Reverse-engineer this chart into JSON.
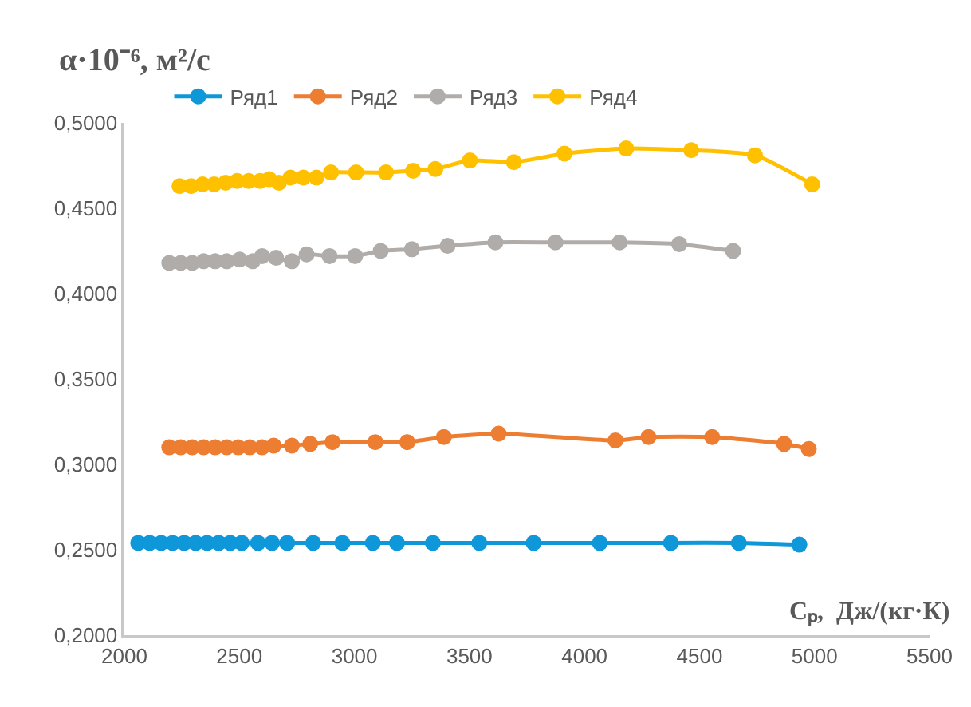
{
  "chart_data": {
    "type": "line",
    "ylabel": "α·10⁻⁶, м²/c",
    "xlabel": "Cₚ,  Дж/(кг·К)",
    "xlim": [
      2000,
      5500
    ],
    "xticks": [
      2000,
      2500,
      3000,
      3500,
      4000,
      4500,
      5000,
      5500
    ],
    "ylim": [
      0.2,
      0.5
    ],
    "yticks": [
      {
        "value": 0.2,
        "label": "0,2000"
      },
      {
        "value": 0.25,
        "label": "0,2500"
      },
      {
        "value": 0.3,
        "label": "0,3000"
      },
      {
        "value": 0.35,
        "label": "0,3500"
      },
      {
        "value": 0.4,
        "label": "0,4000"
      },
      {
        "value": 0.45,
        "label": "0,4500"
      },
      {
        "value": 0.5,
        "label": "0,5000"
      }
    ],
    "legend": "top",
    "marker": "circle",
    "line_style": "solid",
    "series": [
      {
        "name": "Ряд1",
        "color": "#0e97d9",
        "x": [
          2060,
          2110,
          2160,
          2210,
          2260,
          2310,
          2360,
          2410,
          2460,
          2510,
          2581,
          2642,
          2708,
          2821,
          2948,
          3080,
          3185,
          3341,
          3543,
          3779,
          4067,
          4376,
          4671,
          4934
        ],
        "values": [
          0.254,
          0.254,
          0.254,
          0.254,
          0.254,
          0.254,
          0.254,
          0.254,
          0.254,
          0.254,
          0.254,
          0.254,
          0.254,
          0.254,
          0.254,
          0.254,
          0.254,
          0.254,
          0.254,
          0.254,
          0.254,
          0.254,
          0.254,
          0.253
        ]
      },
      {
        "name": "Ряд2",
        "color": "#ed7d31",
        "x": [
          2195,
          2245,
          2295,
          2345,
          2395,
          2445,
          2495,
          2545,
          2599,
          2649,
          2728,
          2808,
          2905,
          3091,
          3230,
          3389,
          3627,
          4135,
          4278,
          4555,
          4868,
          4975
        ],
        "values": [
          0.31,
          0.31,
          0.31,
          0.31,
          0.31,
          0.31,
          0.31,
          0.31,
          0.31,
          0.311,
          0.311,
          0.312,
          0.313,
          0.313,
          0.313,
          0.316,
          0.318,
          0.314,
          0.316,
          0.316,
          0.312,
          0.309
        ]
      },
      {
        "name": "Ряд3",
        "color": "#b0aca9",
        "x": [
          2195,
          2245,
          2295,
          2345,
          2395,
          2445,
          2501,
          2558,
          2599,
          2660,
          2728,
          2792,
          2892,
          3003,
          3114,
          3250,
          3405,
          3613,
          3874,
          4153,
          4412,
          4646
        ],
        "values": [
          0.418,
          0.418,
          0.418,
          0.419,
          0.419,
          0.419,
          0.42,
          0.419,
          0.422,
          0.421,
          0.419,
          0.423,
          0.422,
          0.422,
          0.425,
          0.426,
          0.428,
          0.43,
          0.43,
          0.43,
          0.429,
          0.425
        ]
      },
      {
        "name": "Ряд4",
        "color": "#ffc000",
        "x": [
          2240,
          2290,
          2340,
          2390,
          2440,
          2490,
          2540,
          2590,
          2630,
          2672,
          2722,
          2778,
          2835,
          2898,
          3007,
          3137,
          3255,
          3352,
          3502,
          3693,
          3913,
          4181,
          4464,
          4741,
          4990
        ],
        "values": [
          0.463,
          0.463,
          0.464,
          0.464,
          0.465,
          0.466,
          0.466,
          0.466,
          0.467,
          0.465,
          0.468,
          0.468,
          0.468,
          0.471,
          0.471,
          0.471,
          0.472,
          0.473,
          0.478,
          0.477,
          0.482,
          0.485,
          0.484,
          0.481,
          0.464
        ]
      }
    ]
  }
}
